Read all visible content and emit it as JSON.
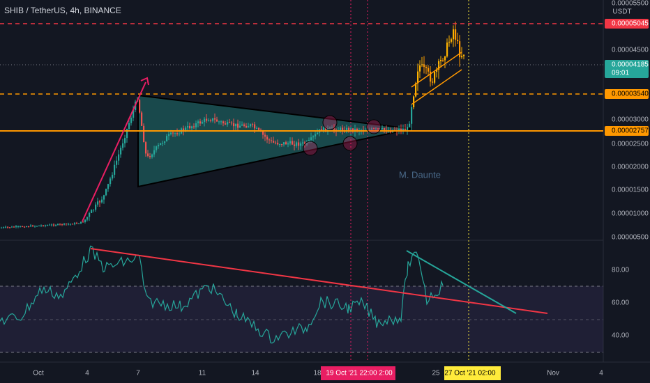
{
  "header": {
    "title": "SHIB / TetherUS, 4h, BINANCE"
  },
  "price_axis": {
    "currency": "USDT",
    "labels": [
      "0.00005500",
      "0.00004500",
      "0.00003000",
      "0.00002500",
      "0.00002000",
      "0.00001500",
      "0.00001000",
      "0.00000500"
    ]
  },
  "price_tags": [
    {
      "label": "0.00005045"
    },
    {
      "label": "0.00004185",
      "sub": "09:01"
    },
    {
      "label": "0.00003540"
    },
    {
      "label": "0.00002757"
    }
  ],
  "rsi_axis": {
    "labels": [
      "80.00",
      "60.00",
      "40.00"
    ]
  },
  "time_axis": {
    "labels": [
      "Oct",
      "4",
      "7",
      "11",
      "14",
      "18",
      "25",
      "Nov",
      "4"
    ]
  },
  "time_tags": [
    {
      "date": "19 Oct '21",
      "times": [
        "22:00",
        "2:00"
      ]
    },
    {
      "date": "27 Oct '21",
      "times": [
        "02:00"
      ]
    }
  ],
  "watermark": "M. Daunte"
}
